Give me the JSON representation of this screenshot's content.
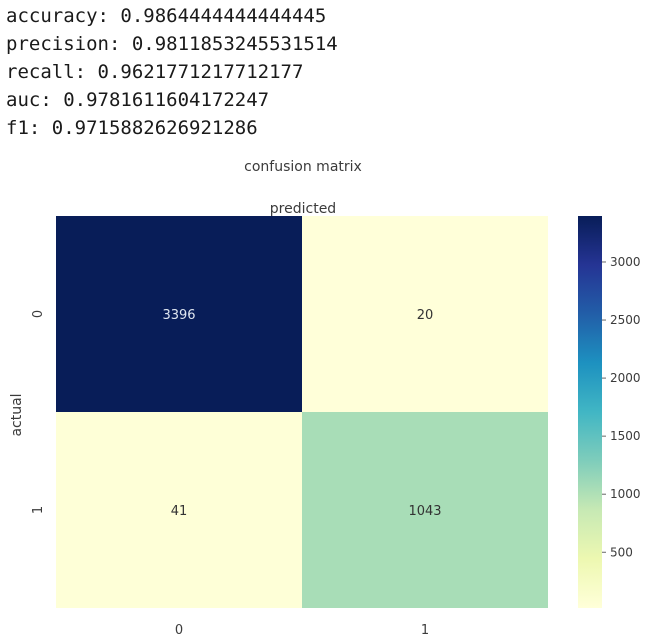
{
  "metrics": [
    {
      "name": "accuracy",
      "value": "0.9864444444444445"
    },
    {
      "name": "precision",
      "value": "0.9811853245531514"
    },
    {
      "name": "recall",
      "value": "0.9621771217712177"
    },
    {
      "name": "auc",
      "value": "0.9781611604172247"
    },
    {
      "name": "f1",
      "value": "0.9715882626921286"
    }
  ],
  "chart_data": {
    "type": "heatmap",
    "title": "confusion matrix",
    "xlabel": "predicted",
    "ylabel": "actual",
    "x_categories": [
      "0",
      "1"
    ],
    "y_categories": [
      "0",
      "1"
    ],
    "values": [
      [
        3396,
        20
      ],
      [
        41,
        1043
      ]
    ],
    "colormap": "YlGnBu",
    "colorbar": {
      "min": 20,
      "max": 3396,
      "ticks": [
        500,
        1000,
        1500,
        2000,
        2500,
        3000
      ]
    },
    "colors": {
      "low": "#ffffd9",
      "high": "#081d58"
    }
  }
}
